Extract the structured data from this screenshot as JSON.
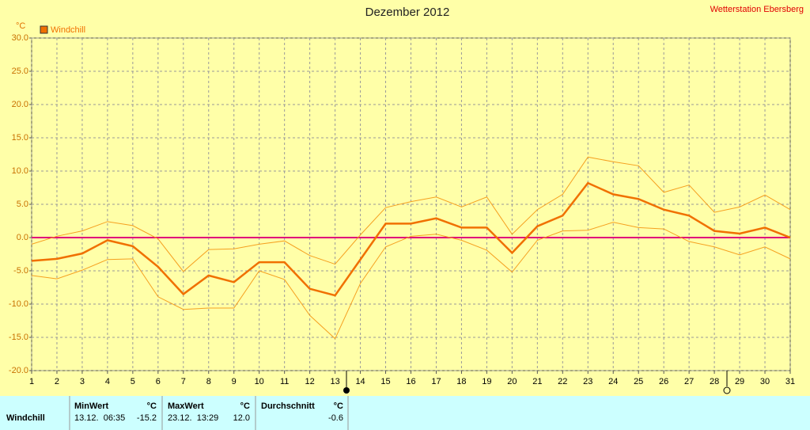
{
  "chart_data": {
    "type": "line",
    "title": "Dezember 2012",
    "station": "Wetterstation Ebersberg",
    "y_unit": "°C",
    "x": [
      1,
      2,
      3,
      4,
      5,
      6,
      7,
      8,
      9,
      10,
      11,
      12,
      13,
      14,
      15,
      16,
      17,
      18,
      19,
      20,
      21,
      22,
      23,
      24,
      25,
      26,
      27,
      28,
      29,
      30,
      31
    ],
    "xlim": [
      1,
      31
    ],
    "xticks": [
      1,
      2,
      3,
      4,
      5,
      6,
      7,
      8,
      9,
      10,
      11,
      12,
      13,
      14,
      15,
      16,
      17,
      18,
      19,
      20,
      21,
      22,
      23,
      24,
      25,
      26,
      27,
      28,
      29,
      30,
      31
    ],
    "ylim": [
      -20,
      30
    ],
    "yticks": [
      {
        "value": -20,
        "label": "-20.0"
      },
      {
        "value": -15,
        "label": "-15.0"
      },
      {
        "value": -10,
        "label": "-10.0"
      },
      {
        "value": -5,
        "label": "-5.0"
      },
      {
        "value": 0,
        "label": "0.0"
      },
      {
        "value": 5,
        "label": "5.0"
      },
      {
        "value": 10,
        "label": "10.0"
      },
      {
        "value": 15,
        "label": "15.0"
      },
      {
        "value": 20,
        "label": "20.0"
      },
      {
        "value": 25,
        "label": "25.0"
      },
      {
        "value": 30,
        "label": "30.0"
      }
    ],
    "grid": true,
    "zero_line_color": "#e0007a",
    "series": [
      {
        "name": "Windchill",
        "color": "#f07000",
        "values": [
          -3.5,
          -3.2,
          -2.4,
          -0.4,
          -1.3,
          -4.4,
          -8.5,
          -5.7,
          -6.7,
          -3.7,
          -3.7,
          -7.7,
          -8.7,
          -3.3,
          2.1,
          2.1,
          2.9,
          1.5,
          1.5,
          -2.3,
          1.7,
          3.3,
          8.2,
          6.5,
          5.8,
          4.2,
          3.3,
          1.0,
          0.6,
          1.5,
          0
        ]
      },
      {
        "color": "#f5a020",
        "values": [
          -1.0,
          0.2,
          1.0,
          2.4,
          1.8,
          -0.2,
          -5.1,
          -1.8,
          -1.7,
          -1.0,
          -0.5,
          -2.7,
          -4.0,
          0.4,
          4.5,
          5.4,
          6.1,
          4.6,
          6.1,
          0.5,
          4.2,
          6.5,
          12.1,
          11.4,
          10.8,
          6.8,
          7.9,
          3.8,
          4.6,
          6.4,
          4.2
        ]
      },
      {
        "color": "#f5a020",
        "values": [
          -5.7,
          -6.2,
          -4.9,
          -3.3,
          -3.2,
          -8.9,
          -10.8,
          -10.6,
          -10.6,
          -5.0,
          -6.3,
          -11.7,
          -15.2,
          -6.9,
          -1.4,
          0.2,
          0.5,
          -0.4,
          -1.9,
          -5.2,
          -0.4,
          1.0,
          1.1,
          2.3,
          1.5,
          1.3,
          -0.6,
          -1.4,
          -2.6,
          -1.4,
          -3.2
        ]
      }
    ]
  },
  "table": {
    "header": [
      "MinWert",
      "°C",
      "MaxWert",
      "°C",
      "Durchschnitt",
      "°C"
    ],
    "rows": [
      [
        "Windchill",
        "13.12.  06:35",
        "-15.2",
        "23.12.  13:29",
        "12.0",
        "-0.6"
      ]
    ]
  }
}
